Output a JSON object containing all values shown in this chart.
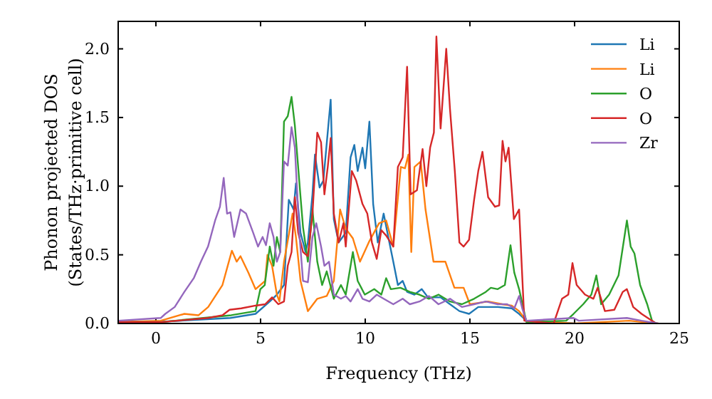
{
  "chart_data": {
    "type": "line",
    "xlabel": "Frequency (THz)",
    "ylabel": "Phonon projected DOS\n(States/THz·primitive cell)",
    "xlim": [
      -1.8,
      25
    ],
    "ylim": [
      0,
      2.2
    ],
    "xticks": [
      0,
      5,
      10,
      15,
      20,
      25
    ],
    "yticks": [
      {
        "value": 0,
        "label": "0.0"
      },
      {
        "value": 0.5,
        "label": "0.5"
      },
      {
        "value": 1,
        "label": "1.0"
      },
      {
        "value": 1.5,
        "label": "1.5"
      },
      {
        "value": 2,
        "label": "2.0"
      }
    ],
    "legend": "top right",
    "grid": false,
    "line_style": "solid",
    "marker": "none",
    "series": [
      {
        "name": "Li",
        "color": "#1f77b4",
        "x": [
          -1.8,
          0,
          3.56,
          4.76,
          5.44,
          5.78,
          6.12,
          6.35,
          6.58,
          6.69,
          6.91,
          7.15,
          7.26,
          7.48,
          7.6,
          7.82,
          8.0,
          8.35,
          8.5,
          8.73,
          9.07,
          9.3,
          9.48,
          9.64,
          9.87,
          10.0,
          10.2,
          10.38,
          10.6,
          10.88,
          11.1,
          11.34,
          11.56,
          11.79,
          12.0,
          12.35,
          12.7,
          13.0,
          13.6,
          14.05,
          14.5,
          14.96,
          15.4,
          15.87,
          16.33,
          17.0,
          17.35,
          17.7,
          20
        ],
        "values": [
          0.01,
          0.01,
          0.04,
          0.07,
          0.16,
          0.21,
          0.28,
          0.9,
          0.83,
          1.02,
          0.66,
          0.52,
          0.59,
          0.94,
          1.23,
          0.99,
          1.04,
          1.63,
          0.76,
          0.59,
          0.66,
          1.21,
          1.3,
          1.11,
          1.28,
          1.13,
          1.47,
          0.87,
          0.59,
          0.8,
          0.63,
          0.45,
          0.28,
          0.31,
          0.23,
          0.21,
          0.25,
          0.19,
          0.19,
          0.14,
          0.09,
          0.07,
          0.12,
          0.12,
          0.12,
          0.11,
          0.07,
          0.02,
          0.0
        ]
      },
      {
        "name": "Li",
        "color": "#ff7f0e",
        "x": [
          -1.8,
          0.23,
          1.36,
          2.04,
          2.5,
          3.18,
          3.63,
          3.86,
          4.04,
          4.42,
          4.76,
          5.22,
          5.33,
          5.55,
          5.78,
          5.9,
          6.12,
          6.53,
          6.69,
          6.91,
          7.26,
          7.71,
          8.16,
          8.5,
          8.8,
          9.07,
          9.41,
          9.75,
          10.2,
          10.66,
          11.0,
          11.34,
          11.7,
          11.9,
          12.06,
          12.2,
          12.35,
          12.65,
          12.88,
          13.26,
          13.83,
          14.26,
          14.7,
          15.0,
          15.87,
          16.55,
          17.0,
          17.35,
          17.7,
          20,
          22.6,
          24
        ],
        "values": [
          0.01,
          0.02,
          0.07,
          0.06,
          0.12,
          0.28,
          0.53,
          0.45,
          0.49,
          0.37,
          0.25,
          0.31,
          0.5,
          0.42,
          0.21,
          0.16,
          0.45,
          0.8,
          0.63,
          0.31,
          0.09,
          0.18,
          0.2,
          0.31,
          0.83,
          0.69,
          0.62,
          0.45,
          0.6,
          0.73,
          0.75,
          0.56,
          1.14,
          1.13,
          1.23,
          0.52,
          1.14,
          1.18,
          0.83,
          0.45,
          0.45,
          0.26,
          0.26,
          0.14,
          0.16,
          0.14,
          0.13,
          0.09,
          0.02,
          0.0,
          0.02,
          0.0
        ]
      },
      {
        "name": "O",
        "color": "#2ca02c",
        "x": [
          -1.8,
          0.23,
          3.6,
          4.76,
          4.99,
          5.2,
          5.44,
          5.62,
          5.78,
          5.94,
          6.12,
          6.3,
          6.48,
          6.64,
          6.9,
          7.03,
          7.26,
          7.48,
          7.71,
          7.94,
          8.16,
          8.5,
          8.84,
          9.07,
          9.41,
          9.64,
          9.98,
          10.43,
          10.77,
          11.0,
          11.22,
          11.68,
          12.13,
          12.59,
          13.04,
          13.5,
          14.05,
          14.62,
          15.2,
          15.76,
          16.0,
          16.33,
          16.67,
          16.94,
          17.12,
          17.35,
          17.7,
          19.6,
          19.95,
          20.41,
          20.8,
          21.04,
          21.27,
          21.65,
          22.1,
          22.5,
          22.68,
          22.86,
          23.13,
          23.47,
          23.7,
          23.9
        ],
        "values": [
          0.01,
          0.01,
          0.06,
          0.09,
          0.25,
          0.28,
          0.56,
          0.42,
          0.63,
          0.52,
          1.47,
          1.51,
          1.65,
          1.44,
          0.94,
          0.7,
          0.45,
          0.83,
          0.45,
          0.28,
          0.38,
          0.18,
          0.28,
          0.21,
          0.52,
          0.31,
          0.21,
          0.25,
          0.21,
          0.33,
          0.25,
          0.26,
          0.23,
          0.21,
          0.18,
          0.21,
          0.16,
          0.14,
          0.18,
          0.23,
          0.26,
          0.25,
          0.28,
          0.57,
          0.37,
          0.25,
          0.01,
          0.02,
          0.07,
          0.14,
          0.21,
          0.35,
          0.14,
          0.21,
          0.35,
          0.75,
          0.56,
          0.51,
          0.28,
          0.14,
          0.02,
          0.0
        ]
      },
      {
        "name": "O",
        "color": "#d62728",
        "x": [
          -1.8,
          0.23,
          2.5,
          3.18,
          3.52,
          4.08,
          4.76,
          5.22,
          5.55,
          5.85,
          6.12,
          6.3,
          6.48,
          6.64,
          6.8,
          7.03,
          7.26,
          7.48,
          7.71,
          7.89,
          8.05,
          8.21,
          8.35,
          8.5,
          8.73,
          8.96,
          9.07,
          9.36,
          9.57,
          9.87,
          10.1,
          10.32,
          10.55,
          10.77,
          11.0,
          11.34,
          11.56,
          11.79,
          12.0,
          12.17,
          12.47,
          12.74,
          12.92,
          13.1,
          13.28,
          13.4,
          13.6,
          13.87,
          14.05,
          14.28,
          14.5,
          14.7,
          14.96,
          15.2,
          15.4,
          15.6,
          15.87,
          16.2,
          16.4,
          16.56,
          16.7,
          16.85,
          17.1,
          17.35,
          17.6,
          19.0,
          19.4,
          19.7,
          19.9,
          20.1,
          20.5,
          20.9,
          21.1,
          21.45,
          21.9,
          22.3,
          22.5,
          22.8,
          23.2,
          23.7,
          23.9
        ],
        "values": [
          0.01,
          0.01,
          0.04,
          0.06,
          0.1,
          0.11,
          0.13,
          0.14,
          0.19,
          0.14,
          0.16,
          0.42,
          0.52,
          0.92,
          0.66,
          0.52,
          0.49,
          0.8,
          1.39,
          1.32,
          0.94,
          1.14,
          1.35,
          0.8,
          0.59,
          0.73,
          0.56,
          1.11,
          1.04,
          0.87,
          0.8,
          0.59,
          0.47,
          0.68,
          0.64,
          0.56,
          1.14,
          1.21,
          1.87,
          0.94,
          0.97,
          1.27,
          1.0,
          1.28,
          1.39,
          2.09,
          1.42,
          2.0,
          1.56,
          1.11,
          0.59,
          0.56,
          0.61,
          0.9,
          1.11,
          1.25,
          0.92,
          0.85,
          0.86,
          1.33,
          1.18,
          1.28,
          0.76,
          0.83,
          0.02,
          0.0,
          0.18,
          0.21,
          0.44,
          0.28,
          0.21,
          0.18,
          0.26,
          0.09,
          0.1,
          0.23,
          0.25,
          0.12,
          0.07,
          0.02,
          0.0
        ]
      },
      {
        "name": "Zr",
        "color": "#9467bd",
        "x": [
          -1.8,
          0.23,
          0.45,
          0.9,
          1.36,
          1.81,
          2.15,
          2.49,
          2.83,
          3.06,
          3.24,
          3.4,
          3.56,
          3.74,
          4.04,
          4.31,
          4.65,
          4.88,
          5.1,
          5.26,
          5.44,
          5.62,
          5.78,
          5.94,
          6.12,
          6.3,
          6.48,
          6.64,
          6.85,
          7.03,
          7.26,
          7.48,
          7.66,
          7.89,
          8.05,
          8.27,
          8.5,
          8.84,
          9.07,
          9.3,
          9.64,
          9.87,
          10.2,
          10.55,
          10.88,
          11.34,
          11.79,
          12.13,
          12.59,
          13.04,
          13.5,
          14.05,
          14.62,
          15.2,
          15.76,
          16.33,
          16.78,
          17.12,
          17.35,
          17.5,
          17.7,
          19.95,
          20.2,
          22.5,
          23.2,
          24
        ],
        "values": [
          0.02,
          0.04,
          0.07,
          0.12,
          0.23,
          0.33,
          0.45,
          0.56,
          0.75,
          0.85,
          1.06,
          0.8,
          0.81,
          0.63,
          0.83,
          0.8,
          0.66,
          0.56,
          0.63,
          0.57,
          0.73,
          0.63,
          0.45,
          0.52,
          1.18,
          1.15,
          1.43,
          1.28,
          0.66,
          0.31,
          0.3,
          0.63,
          0.73,
          0.56,
          0.42,
          0.45,
          0.21,
          0.18,
          0.2,
          0.16,
          0.25,
          0.18,
          0.16,
          0.21,
          0.18,
          0.14,
          0.18,
          0.14,
          0.16,
          0.2,
          0.14,
          0.18,
          0.12,
          0.14,
          0.16,
          0.14,
          0.14,
          0.11,
          0.2,
          0.11,
          0.02,
          0.04,
          0.02,
          0.04,
          0.02,
          0.0
        ]
      }
    ]
  }
}
